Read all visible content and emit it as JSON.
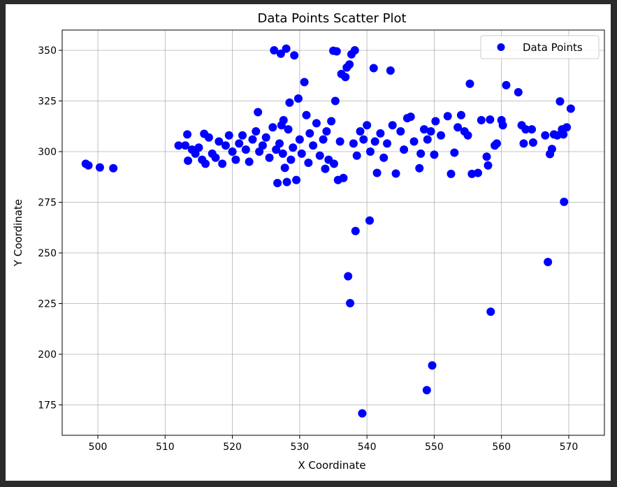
{
  "chart_data": {
    "type": "scatter",
    "title": "Data Points Scatter Plot",
    "xlabel": "X Coordinate",
    "ylabel": "Y Coordinate",
    "xlim": [
      494.7,
      575.3
    ],
    "ylim": [
      160,
      360
    ],
    "xticks": [
      500,
      510,
      520,
      530,
      540,
      550,
      560,
      570
    ],
    "yticks": [
      175,
      200,
      225,
      250,
      275,
      300,
      325,
      350
    ],
    "grid": true,
    "legend_position": "upper-right",
    "marker_color": "#0000ff",
    "series": [
      {
        "name": "Data Points",
        "color": "#0000ff",
        "points": [
          [
            498.2,
            294
          ],
          [
            498.6,
            293.2
          ],
          [
            500.3,
            292.2
          ],
          [
            502.3,
            291.8
          ],
          [
            512.0,
            303
          ],
          [
            513.0,
            303
          ],
          [
            513.3,
            308.5
          ],
          [
            513.4,
            295.5
          ],
          [
            514.0,
            301
          ],
          [
            514.5,
            299
          ],
          [
            515.0,
            302
          ],
          [
            515.5,
            296
          ],
          [
            515.8,
            308.8
          ],
          [
            516.0,
            294
          ],
          [
            516.5,
            307
          ],
          [
            517.0,
            299
          ],
          [
            517.5,
            297
          ],
          [
            518.0,
            305
          ],
          [
            518.5,
            294
          ],
          [
            519.0,
            303
          ],
          [
            519.5,
            308
          ],
          [
            520.0,
            300
          ],
          [
            520.5,
            296
          ],
          [
            521.0,
            304
          ],
          [
            521.5,
            308
          ],
          [
            522.0,
            301
          ],
          [
            522.5,
            295
          ],
          [
            523.0,
            306
          ],
          [
            523.5,
            310
          ],
          [
            523.8,
            319.5
          ],
          [
            524.0,
            300
          ],
          [
            524.5,
            303
          ],
          [
            525.0,
            307
          ],
          [
            525.5,
            297
          ],
          [
            526.0,
            312
          ],
          [
            526.2,
            350
          ],
          [
            526.5,
            301
          ],
          [
            526.7,
            284.5
          ],
          [
            527.0,
            304
          ],
          [
            527.2,
            348.3
          ],
          [
            527.3,
            313
          ],
          [
            527.5,
            299
          ],
          [
            527.6,
            315.5
          ],
          [
            527.8,
            292
          ],
          [
            528.0,
            350.8
          ],
          [
            528.1,
            285
          ],
          [
            528.3,
            311
          ],
          [
            528.5,
            324.2
          ],
          [
            528.7,
            296
          ],
          [
            529.0,
            302
          ],
          [
            529.2,
            347.5
          ],
          [
            529.5,
            286
          ],
          [
            529.8,
            326.2
          ],
          [
            530.0,
            306
          ],
          [
            530.3,
            299
          ],
          [
            530.7,
            334.3
          ],
          [
            531.0,
            318
          ],
          [
            531.3,
            294.5
          ],
          [
            531.5,
            309
          ],
          [
            532.0,
            303
          ],
          [
            532.5,
            314
          ],
          [
            533.0,
            298
          ],
          [
            533.5,
            306
          ],
          [
            533.8,
            291.5
          ],
          [
            534.0,
            310
          ],
          [
            534.3,
            296
          ],
          [
            534.7,
            315
          ],
          [
            535.0,
            349.8
          ],
          [
            535.1,
            294
          ],
          [
            535.3,
            325
          ],
          [
            535.5,
            349.5
          ],
          [
            535.7,
            286
          ],
          [
            536.0,
            305
          ],
          [
            536.2,
            338.3
          ],
          [
            536.5,
            287
          ],
          [
            536.8,
            336.8
          ],
          [
            537.0,
            341.5
          ],
          [
            537.2,
            238.5
          ],
          [
            537.4,
            343
          ],
          [
            537.5,
            225.2
          ],
          [
            537.7,
            348
          ],
          [
            538.0,
            304
          ],
          [
            538.2,
            350
          ],
          [
            538.3,
            260.8
          ],
          [
            538.5,
            298
          ],
          [
            539.0,
            310
          ],
          [
            539.3,
            170.8
          ],
          [
            539.5,
            306
          ],
          [
            540.0,
            313
          ],
          [
            540.4,
            266
          ],
          [
            540.5,
            300
          ],
          [
            541.0,
            341.2
          ],
          [
            541.2,
            305
          ],
          [
            541.5,
            289.5
          ],
          [
            542.0,
            309
          ],
          [
            542.5,
            297
          ],
          [
            543.0,
            304
          ],
          [
            543.5,
            340
          ],
          [
            543.8,
            313
          ],
          [
            544.3,
            289.2
          ],
          [
            545.0,
            310
          ],
          [
            545.5,
            301
          ],
          [
            546.0,
            316.5
          ],
          [
            546.5,
            317.2
          ],
          [
            547.0,
            305
          ],
          [
            547.8,
            291.8
          ],
          [
            548.0,
            299
          ],
          [
            548.5,
            311
          ],
          [
            548.9,
            182.3
          ],
          [
            549.0,
            306
          ],
          [
            549.5,
            310
          ],
          [
            549.7,
            194.5
          ],
          [
            550.0,
            298.5
          ],
          [
            550.2,
            315
          ],
          [
            551.0,
            308
          ],
          [
            552.0,
            317.5
          ],
          [
            552.5,
            289
          ],
          [
            553.0,
            299.5
          ],
          [
            553.5,
            312
          ],
          [
            554.0,
            318
          ],
          [
            554.5,
            310
          ],
          [
            555.0,
            308
          ],
          [
            555.3,
            333.5
          ],
          [
            555.6,
            289
          ],
          [
            556.5,
            289.5
          ],
          [
            557.0,
            315.5
          ],
          [
            557.8,
            297.5
          ],
          [
            558.0,
            293.2
          ],
          [
            558.3,
            315.8
          ],
          [
            558.4,
            221
          ],
          [
            559.0,
            303
          ],
          [
            559.3,
            304
          ],
          [
            560.0,
            315.5
          ],
          [
            560.2,
            313
          ],
          [
            560.7,
            332.8
          ],
          [
            562.5,
            329.3
          ],
          [
            563.0,
            313
          ],
          [
            563.3,
            304
          ],
          [
            563.6,
            311
          ],
          [
            564.5,
            311
          ],
          [
            564.7,
            304.5
          ],
          [
            566.5,
            308
          ],
          [
            566.9,
            245.5
          ],
          [
            567.2,
            298.8
          ],
          [
            567.5,
            301.3
          ],
          [
            567.8,
            308.5
          ],
          [
            568.3,
            308
          ],
          [
            568.7,
            324.8
          ],
          [
            569.0,
            311
          ],
          [
            569.2,
            308.5
          ],
          [
            569.3,
            275.2
          ],
          [
            569.7,
            312
          ],
          [
            570.3,
            321.2
          ]
        ]
      }
    ]
  }
}
